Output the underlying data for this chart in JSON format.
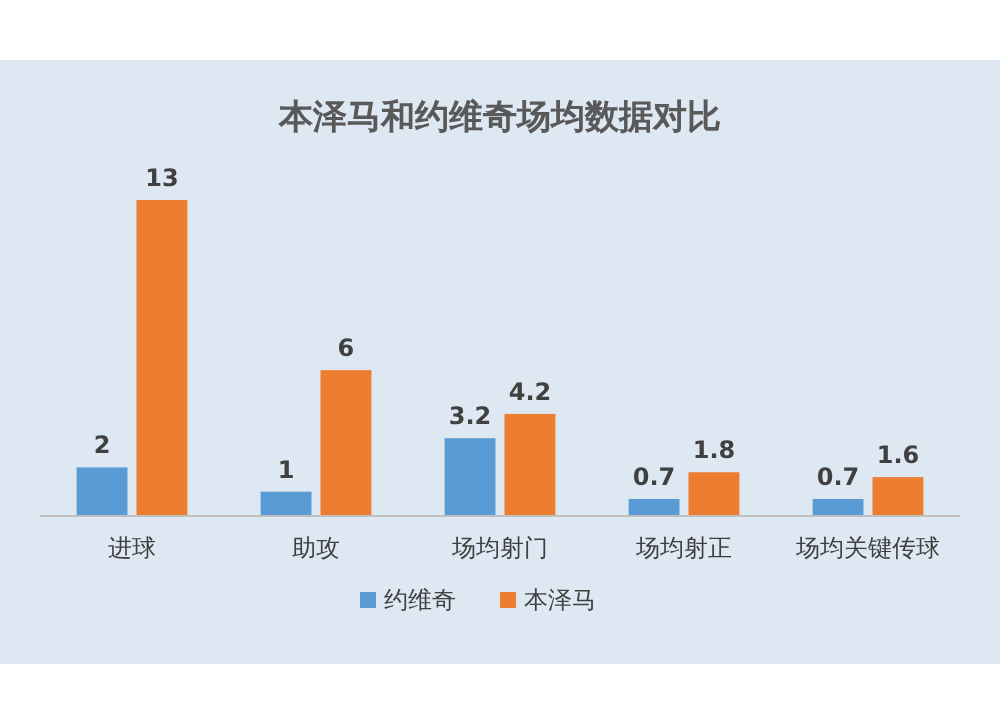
{
  "chart_data": {
    "type": "bar",
    "title": "本泽马和约维奇场均数据对比",
    "categories": [
      "进球",
      "助攻",
      "场均射门",
      "场均射正",
      "场均关键传球"
    ],
    "series": [
      {
        "name": "约维奇",
        "color": "#5b9bd5",
        "values": [
          2,
          1,
          3.2,
          0.7,
          0.7
        ]
      },
      {
        "name": "本泽马",
        "color": "#ed7d31",
        "values": [
          13,
          6,
          4.2,
          1.8,
          1.6
        ]
      }
    ],
    "data_labels": true,
    "legend": "bottom",
    "grid": false
  }
}
